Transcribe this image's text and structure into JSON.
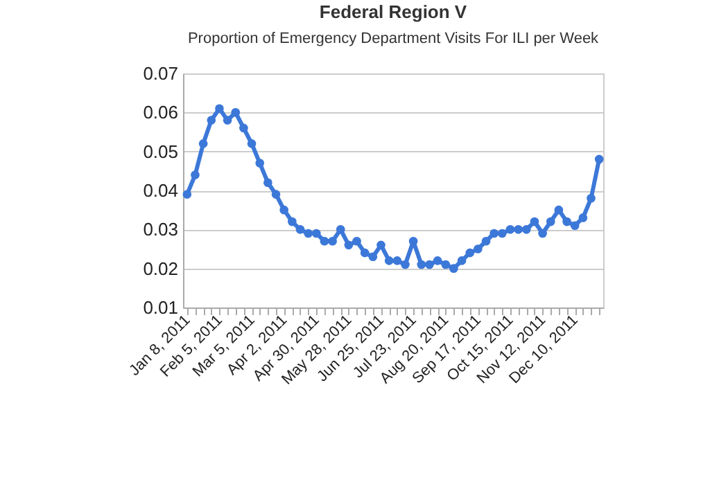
{
  "chart_data": {
    "type": "line",
    "title": "Federal Region V",
    "subtitle": "Proportion of Emergency Department Visits For ILI per Week",
    "categories": [
      "Jan 8, 2011",
      null,
      null,
      null,
      "Feb 5, 2011",
      null,
      null,
      null,
      "Mar 5, 2011",
      null,
      null,
      null,
      "Apr 2, 2011",
      null,
      null,
      null,
      "Apr 30, 2011",
      null,
      null,
      null,
      "May 28, 2011",
      null,
      null,
      null,
      "Jun 25, 2011",
      null,
      null,
      null,
      "Jul 23, 2011",
      null,
      null,
      null,
      "Aug 20, 2011",
      null,
      null,
      null,
      "Sep 17, 2011",
      null,
      null,
      null,
      "Oct 15, 2011",
      null,
      null,
      null,
      "Nov 12, 2011",
      null,
      null,
      null,
      "Dec 10, 2011",
      null,
      null,
      null
    ],
    "series": [
      {
        "color": "#3c78d8",
        "values": [
          0.039,
          0.044,
          0.052,
          0.058,
          0.061,
          0.058,
          0.06,
          0.056,
          0.052,
          0.047,
          0.042,
          0.039,
          0.035,
          0.032,
          0.03,
          0.029,
          0.029,
          0.027,
          0.027,
          0.03,
          0.026,
          0.027,
          0.024,
          0.023,
          0.026,
          0.022,
          0.022,
          0.021,
          0.027,
          0.021,
          0.021,
          0.022,
          0.021,
          0.02,
          0.022,
          0.024,
          0.025,
          0.027,
          0.029,
          0.029,
          0.03,
          0.03,
          0.03,
          0.032,
          0.029,
          0.032,
          0.035,
          0.032,
          0.031,
          0.033,
          0.038,
          0.048
        ]
      }
    ],
    "ylim": [
      0.01,
      0.07
    ],
    "yticks": [
      0.01,
      0.02,
      0.03,
      0.04,
      0.05,
      0.06,
      0.07
    ],
    "grid": "y",
    "marker": "circle",
    "line_style": "solid",
    "legend": false
  }
}
